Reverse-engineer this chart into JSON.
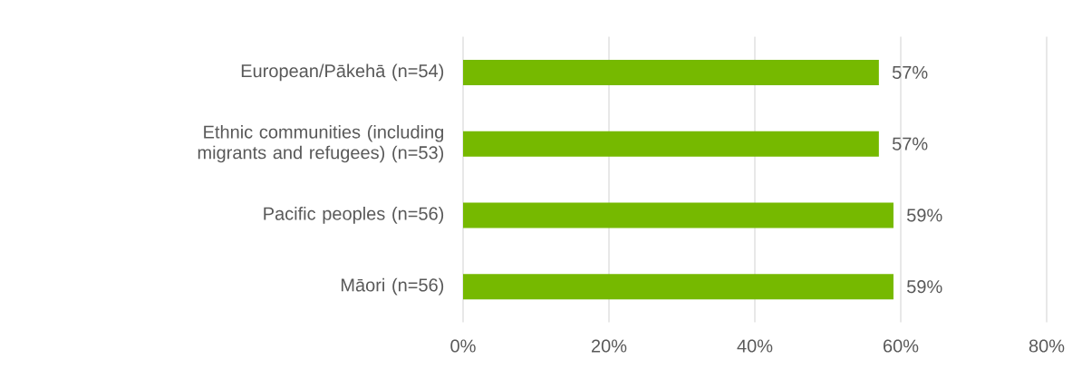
{
  "chart_data": {
    "type": "bar",
    "orientation": "horizontal",
    "categories": [
      "European/Pākehā (n=54)",
      "Ethnic communities (including migrants and refugees) (n=53)",
      "Pacific peoples (n=56)",
      "Māori (n=56)"
    ],
    "values": [
      57,
      57,
      59,
      59
    ],
    "value_labels": [
      "57%",
      "57%",
      "59%",
      "59%"
    ],
    "color": "#76b900",
    "xlim": [
      0,
      80
    ],
    "xticks": [
      {
        "value": 0,
        "label": "0%"
      },
      {
        "value": 20,
        "label": "20%"
      },
      {
        "value": 40,
        "label": "40%"
      },
      {
        "value": 60,
        "label": "60%"
      },
      {
        "value": 80,
        "label": "80%"
      }
    ],
    "grid": "x"
  }
}
